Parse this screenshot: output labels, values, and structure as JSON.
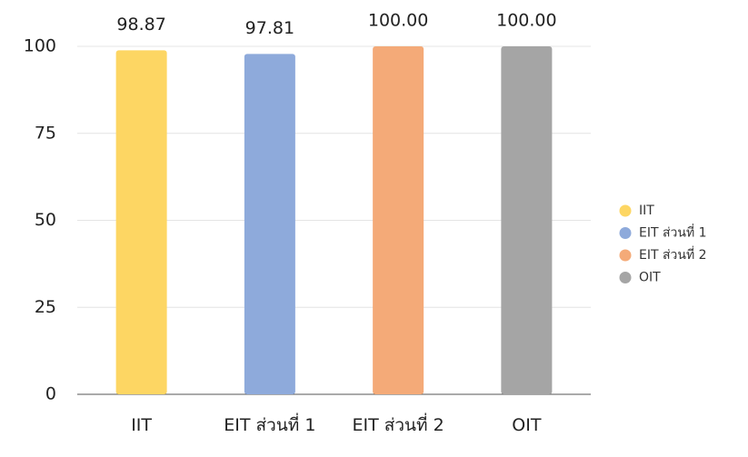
{
  "chart_data": {
    "type": "bar",
    "categories": [
      "IIT",
      "EIT ส่วนที่ 1",
      "EIT ส่วนที่ 2",
      "OIT"
    ],
    "values": [
      98.87,
      97.81,
      100,
      100
    ],
    "value_labels": [
      "98.87",
      "97.81",
      "100.00",
      "100.00"
    ],
    "colors": [
      "#fdd663",
      "#8eaadb",
      "#f4aa78",
      "#a5a5a5"
    ],
    "ylim": [
      0,
      100
    ],
    "yticks": [
      0,
      25,
      50,
      75,
      100
    ],
    "grid": true,
    "legend": "right"
  }
}
